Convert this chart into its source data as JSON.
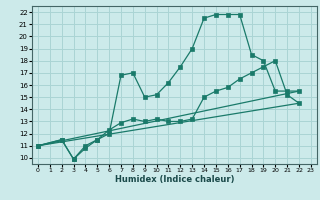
{
  "xlabel": "Humidex (Indice chaleur)",
  "bg_color": "#cceaea",
  "grid_color": "#aad4d4",
  "line_color": "#1a7a6a",
  "xlim": [
    -0.5,
    23.5
  ],
  "ylim": [
    9.5,
    22.5
  ],
  "xticks": [
    0,
    1,
    2,
    3,
    4,
    5,
    6,
    7,
    8,
    9,
    10,
    11,
    12,
    13,
    14,
    15,
    16,
    17,
    18,
    19,
    20,
    21,
    22,
    23
  ],
  "yticks": [
    10,
    11,
    12,
    13,
    14,
    15,
    16,
    17,
    18,
    19,
    20,
    21,
    22
  ],
  "line1_x": [
    0,
    2,
    3,
    4,
    5,
    6,
    7,
    8,
    9,
    10,
    11,
    12,
    13,
    14,
    15,
    16,
    17,
    18,
    19,
    20,
    21,
    22
  ],
  "line1_y": [
    11,
    11.5,
    9.9,
    11.0,
    11.5,
    12.0,
    16.8,
    17.0,
    15.0,
    15.2,
    16.2,
    17.5,
    19.0,
    21.5,
    21.8,
    21.8,
    21.8,
    18.5,
    18.0,
    15.5,
    15.5,
    15.5
  ],
  "line2_x": [
    0,
    2,
    3,
    4,
    5,
    6,
    7,
    8,
    9,
    10,
    11,
    12,
    13,
    14,
    15,
    16,
    17,
    18,
    19,
    20,
    21,
    22
  ],
  "line2_y": [
    11,
    11.5,
    9.9,
    10.8,
    11.5,
    12.3,
    12.9,
    13.2,
    13.0,
    13.2,
    13.0,
    13.0,
    13.2,
    15.0,
    15.5,
    15.8,
    16.5,
    17.0,
    17.5,
    18.0,
    15.2,
    14.5
  ],
  "line3_x": [
    0,
    22
  ],
  "line3_y": [
    11,
    14.5
  ],
  "line4_x": [
    0,
    22
  ],
  "line4_y": [
    11,
    15.5
  ]
}
